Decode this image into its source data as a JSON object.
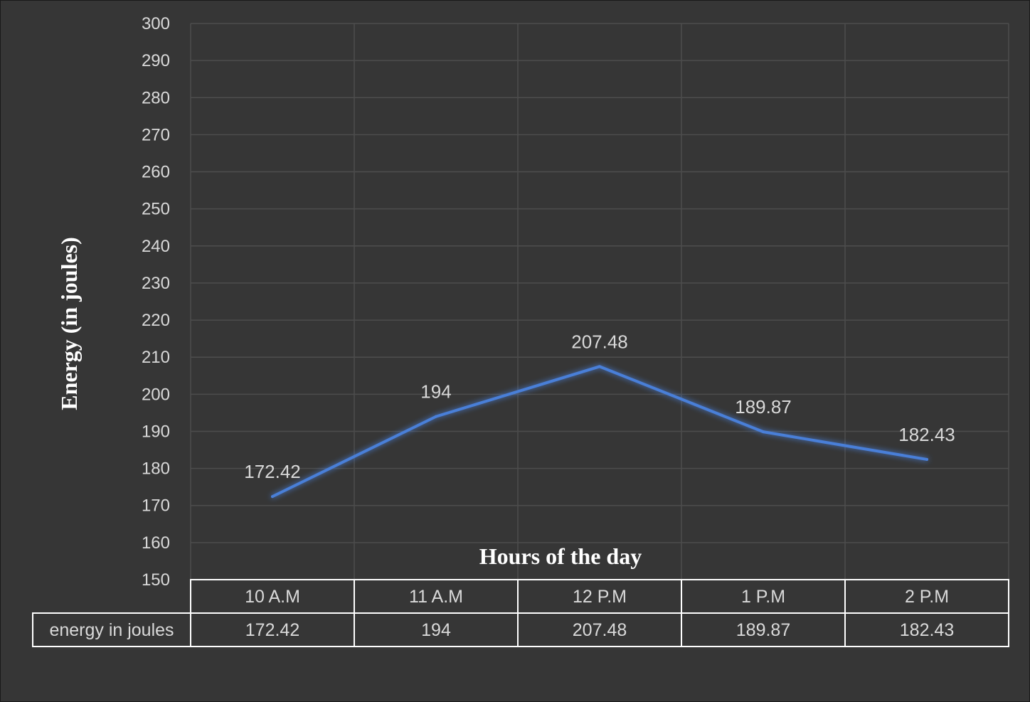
{
  "chart_data": {
    "type": "line",
    "categories": [
      "10 A.M",
      "11 A.M",
      "12 P.M",
      "1 P.M",
      "2 P.M"
    ],
    "series": [
      {
        "name": "energy in joules",
        "values": [
          172.42,
          194,
          207.48,
          189.87,
          182.43
        ]
      }
    ],
    "data_labels": [
      "172.42",
      "194",
      "207.48",
      "189.87",
      "182.43"
    ],
    "table_values": [
      "172.42",
      "194",
      "207.48",
      "189.87",
      "182.43"
    ],
    "title": "",
    "xlabel": "Hours of the day",
    "ylabel": "Energy (in joules)",
    "ylim": [
      150,
      300
    ],
    "yticks": [
      "150",
      "160",
      "170",
      "180",
      "190",
      "200",
      "210",
      "220",
      "230",
      "240",
      "250",
      "260",
      "270",
      "280",
      "290",
      "300"
    ],
    "grid": true,
    "data_table": true,
    "colors": {
      "background": "#363636",
      "line": "#4a7fd8",
      "grid": "#4d4d4d",
      "text": "#d9d9d9",
      "table_border": "#ffffff"
    }
  }
}
